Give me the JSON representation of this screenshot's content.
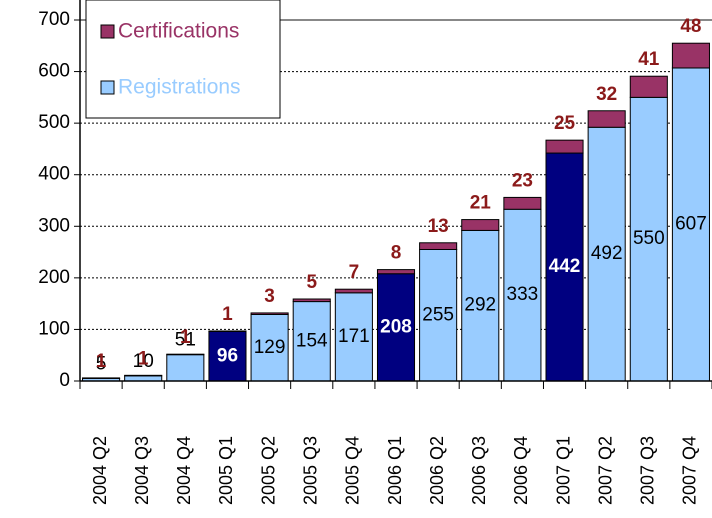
{
  "chart_data": {
    "type": "stacked_bar",
    "categories": [
      "2004 Q2",
      "2004 Q3",
      "2004 Q4",
      "2005 Q1",
      "2005 Q2",
      "2005 Q3",
      "2005 Q4",
      "2006 Q1",
      "2006 Q2",
      "2006 Q3",
      "2006 Q4",
      "2007 Q1",
      "2007 Q2",
      "2007 Q3",
      "2007 Q4"
    ],
    "series": [
      {
        "name": "Registrations",
        "color": "#99ccff",
        "colors": [
          "#99ccff",
          "#99ccff",
          "#99ccff",
          "#000080",
          "#99ccff",
          "#99ccff",
          "#99ccff",
          "#000080",
          "#99ccff",
          "#99ccff",
          "#99ccff",
          "#000080",
          "#99ccff",
          "#99ccff",
          "#99ccff"
        ],
        "values": [
          5,
          10,
          51,
          96,
          129,
          154,
          171,
          208,
          255,
          292,
          333,
          442,
          492,
          550,
          607
        ]
      },
      {
        "name": "Certifications",
        "color": "#993366",
        "values": [
          1,
          1,
          1,
          1,
          3,
          5,
          7,
          8,
          13,
          21,
          23,
          25,
          32,
          41,
          48
        ]
      }
    ],
    "ylim": [
      0,
      700
    ],
    "yticks": [
      0,
      100,
      200,
      300,
      400,
      500,
      600,
      700
    ],
    "grid": true,
    "legend": "top-left"
  }
}
